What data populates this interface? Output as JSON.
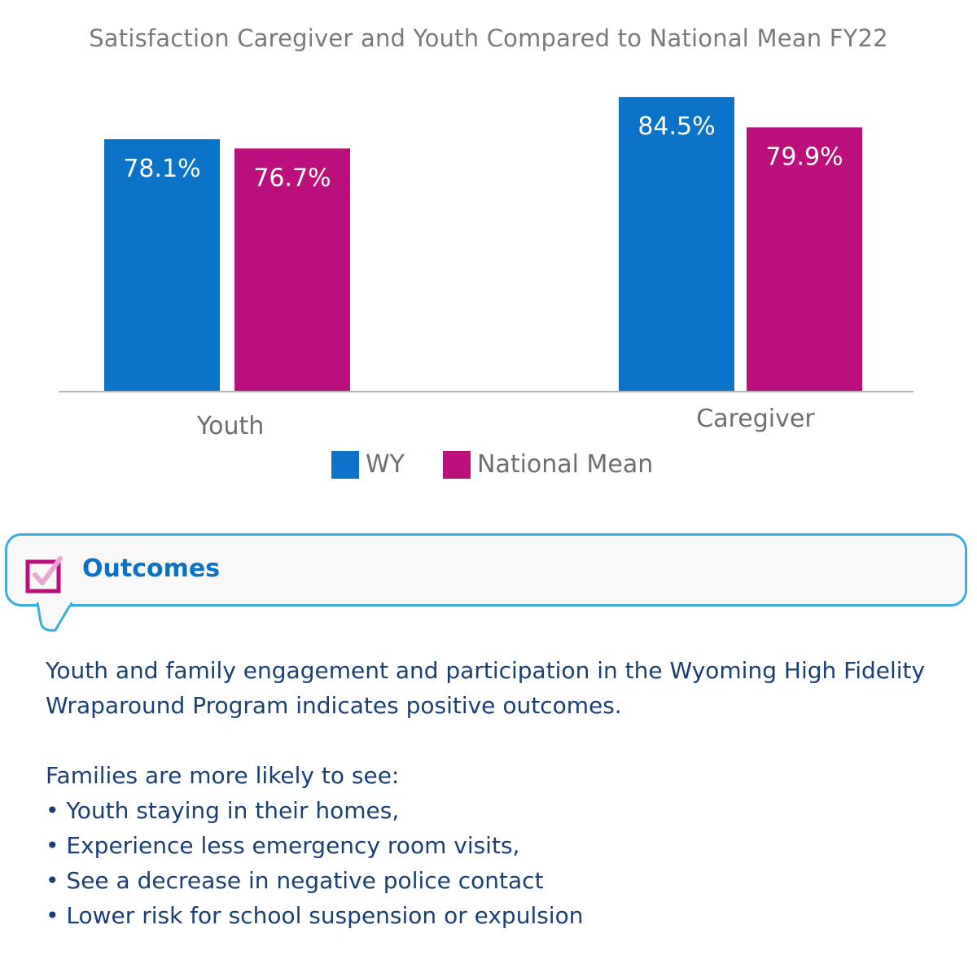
{
  "chart_data": {
    "type": "bar",
    "title": "Satisfaction Caregiver and Youth Compared to National Mean FY22",
    "categories": [
      "Youth",
      "Caregiver"
    ],
    "series": [
      {
        "name": "WY",
        "color": "#0b73c8",
        "values": [
          78.1,
          84.5
        ],
        "labels": [
          "78.1%",
          "84.5%"
        ]
      },
      {
        "name": "National Mean",
        "color": "#bb107c",
        "values": [
          76.7,
          79.9
        ],
        "labels": [
          "76.7%",
          "79.9%"
        ]
      }
    ],
    "ylim": [
      0,
      100
    ],
    "grid": false,
    "legend_position": "bottom"
  },
  "callout": {
    "title": "Outcomes",
    "icon": "checkbox-icon",
    "border_color": "#3aaee0",
    "icon_color": "#bb107c"
  },
  "content": {
    "paragraph": "Youth and family engagement and participation in the Wyoming High Fidelity Wraparound Program indicates positive outcomes.",
    "list_intro": "Families are more likely to see:",
    "bullets": [
      "Youth staying in their homes,",
      "Experience less emergency room visits,",
      "See a decrease in negative police contact",
      "Lower risk for school suspension or expulsion"
    ]
  }
}
